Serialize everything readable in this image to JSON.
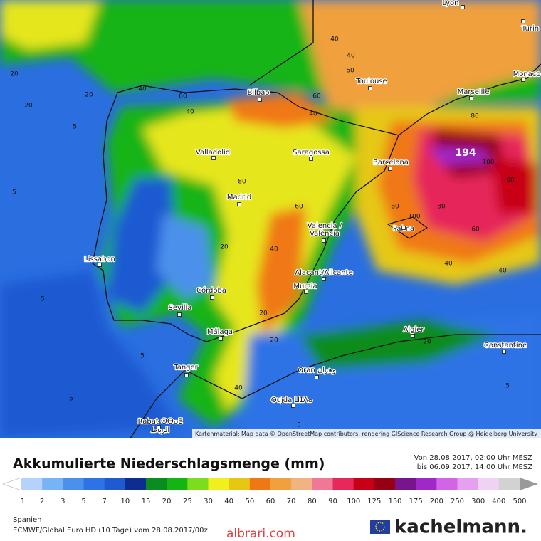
{
  "map": {
    "cities": [
      "Lyon",
      "Turin",
      "Monaco",
      "Bilbao",
      "Toulouse",
      "Marseille",
      "Valladolid",
      "Saragossa",
      "Barcelona",
      "Madrid",
      "Valencia /",
      "València",
      "Palma",
      "Lissabon",
      "Alacant/Alicante",
      "Murcia",
      "Córdoba",
      "Sevilla",
      "Málaga",
      "Algier",
      "Constantine",
      "Tanger",
      "Oran وهران",
      "Oujda ⵡⵊⴷⴰ",
      "Rabat ⵔⴱⴰⵟ",
      "الرباط"
    ],
    "max_label": "194",
    "contour_labels": [
      "20",
      "20",
      "20",
      "40",
      "40",
      "60",
      "40",
      "60",
      "40",
      "60",
      "40",
      "80",
      "100",
      "80",
      "60",
      "40",
      "5",
      "5",
      "5",
      "5",
      "20",
      "40",
      "60",
      "80",
      "80",
      "100",
      "60",
      "40",
      "20",
      "5",
      "5",
      "20",
      "40",
      "20",
      "5"
    ],
    "attribution": "Kartenmaterial: Map data © OpenStreetMap contributors, rendering GIScience Research Group @ Heidelberg University"
  },
  "header": {
    "title": "Akkumulierte Niederschlagsmenge (mm)",
    "from": "Von 28.08.2017, 02:00 Uhr MESZ",
    "to": "bis 06.09.2017, 14:00 Uhr MESZ"
  },
  "legend": {
    "ticks": [
      1,
      2,
      3,
      5,
      7,
      10,
      15,
      20,
      25,
      30,
      40,
      50,
      60,
      70,
      80,
      90,
      100,
      125,
      150,
      175,
      200,
      250,
      300,
      400,
      500
    ],
    "colors": [
      "#b4d2fa",
      "#78b4f5",
      "#4b91eb",
      "#2d73e6",
      "#1e5ad2",
      "#0f2d91",
      "#0a8c1e",
      "#14b414",
      "#7ddc1e",
      "#f0f01e",
      "#e6c814",
      "#f07814",
      "#f0a03c",
      "#f0b482",
      "#f07896",
      "#e6285a",
      "#c80014",
      "#960014",
      "#78148c",
      "#a028c8",
      "#d264e6",
      "#e6a0f0",
      "#f0d2f5",
      "#d2d2d2"
    ]
  },
  "footer": {
    "region": "Spanien",
    "model": "ECMWF/Global Euro HD (10 Tage) vom 28.08.2017/00z",
    "brand": "kachelmann.",
    "watermark": "albrari.com"
  }
}
